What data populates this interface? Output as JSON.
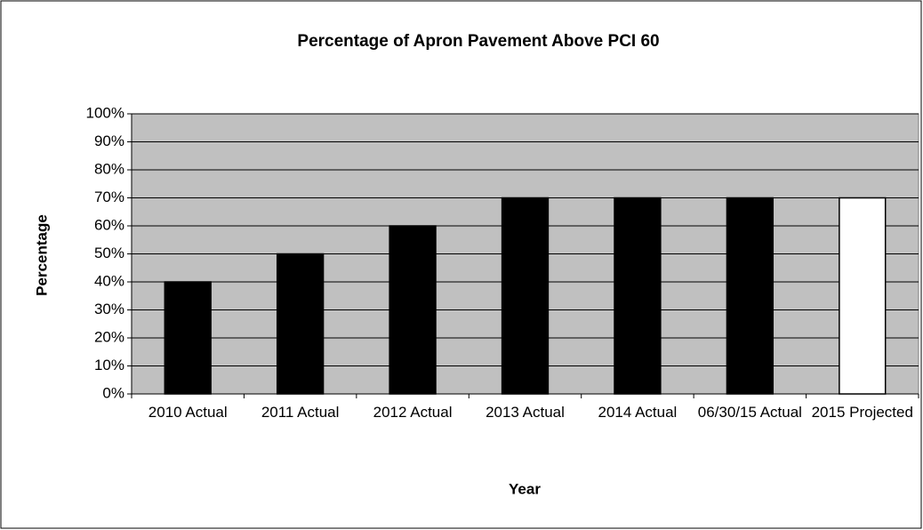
{
  "chart_data": {
    "type": "bar",
    "title": "Percentage of Apron Pavement Above PCI 60",
    "x_label": "Year",
    "y_label": "Percentage",
    "categories": [
      "2010 Actual",
      "2011 Actual",
      "2012 Actual",
      "2013 Actual",
      "2014 Actual",
      "06/30/15 Actual",
      "2015 Projected"
    ],
    "values": [
      40,
      50,
      60,
      70,
      70,
      70,
      70
    ],
    "colors": [
      "#000000",
      "#000000",
      "#000000",
      "#000000",
      "#000000",
      "#000000",
      "#ffffff"
    ],
    "ylim": [
      0,
      100
    ],
    "yticks": [
      {
        "value": 0,
        "label": "0%"
      },
      {
        "value": 10,
        "label": "10%"
      },
      {
        "value": 20,
        "label": "20%"
      },
      {
        "value": 30,
        "label": "30%"
      },
      {
        "value": 40,
        "label": "40%"
      },
      {
        "value": 50,
        "label": "50%"
      },
      {
        "value": 60,
        "label": "60%"
      },
      {
        "value": 70,
        "label": "70%"
      },
      {
        "value": 80,
        "label": "80%"
      },
      {
        "value": 90,
        "label": "90%"
      },
      {
        "value": 100,
        "label": "100%"
      }
    ],
    "grid": true
  }
}
